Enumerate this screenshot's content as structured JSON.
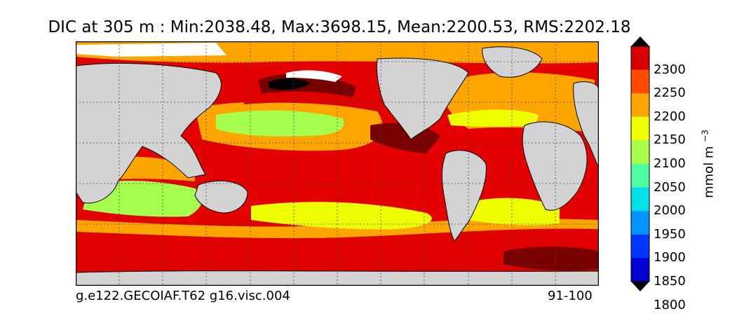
{
  "title": "DIC at 305 m : Min:2038.48, Max:3698.15, Mean:2200.53, RMS:2202.18",
  "footer": {
    "left": "g.e122.GECOIAF.T62 g16.visc.004",
    "right": "91-100"
  },
  "colorbar": {
    "units_base": "mmol m",
    "units_exp": "−3",
    "levels": [
      1800,
      1850,
      1900,
      1950,
      2000,
      2050,
      2100,
      2150,
      2200,
      2250,
      2300
    ],
    "colors": [
      "#00007f",
      "#0000d0",
      "#0035ff",
      "#0094ff",
      "#00e0e8",
      "#4cff9f",
      "#a6ff4c",
      "#eeff00",
      "#ffa500",
      "#ff4a00",
      "#d60000",
      "#7f0000"
    ],
    "land_color": "#d3d3d3",
    "ice_color": "#ffffff"
  },
  "chart_data": {
    "type": "heatmap",
    "title": "DIC at 305 m : Min:2038.48, Max:3698.15, Mean:2200.53, RMS:2202.18",
    "variable": "DIC",
    "depth": "305 m",
    "stats": {
      "min": 2038.48,
      "max": 3698.15,
      "mean": 2200.53,
      "rms": 2202.18
    },
    "units": "mmol m^-3",
    "color_levels": [
      1800,
      1850,
      1900,
      1950,
      2000,
      2050,
      2100,
      2150,
      2200,
      2250,
      2300
    ],
    "grid": true,
    "legend_placement": "right",
    "case": "g.e122.GECOIAF.T62 g16.visc.004",
    "years": "91-100"
  }
}
